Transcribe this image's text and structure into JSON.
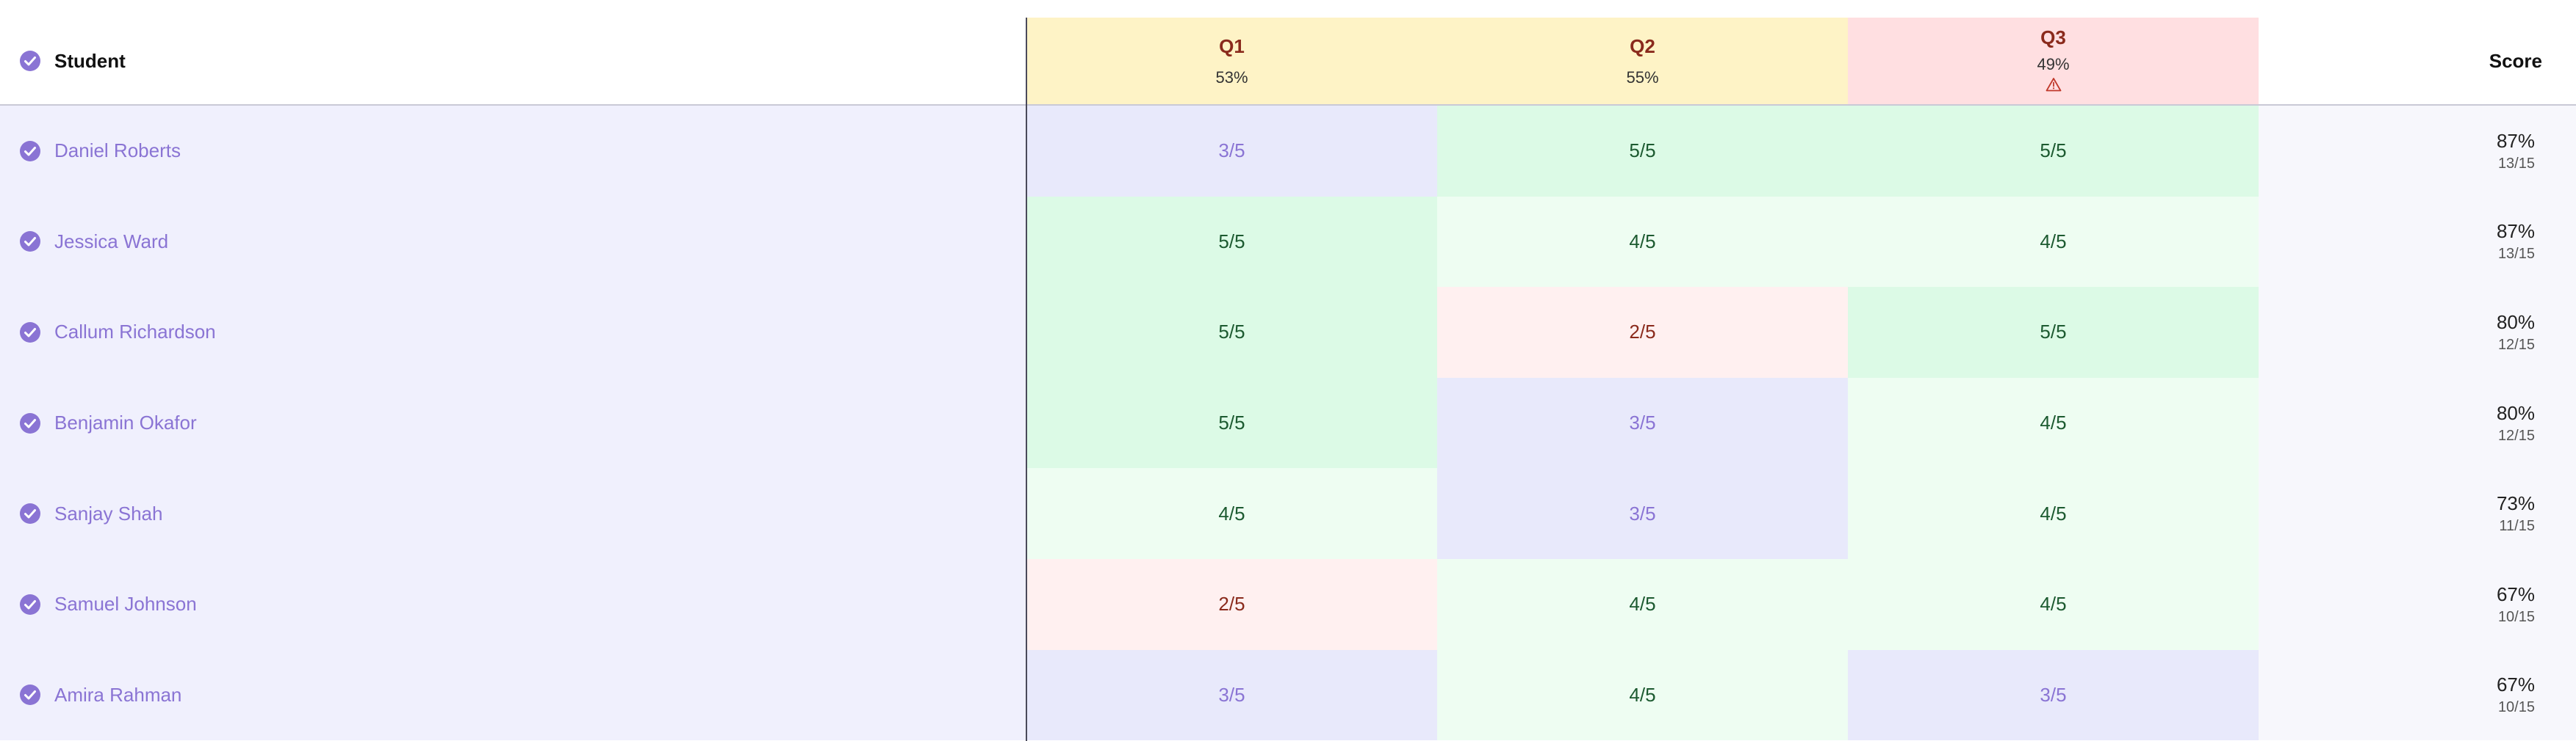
{
  "header": {
    "student_label": "Student",
    "score_label": "Score",
    "questions": [
      {
        "name": "Q1",
        "percent": "53%",
        "warning": false,
        "tone": "yellow"
      },
      {
        "name": "Q2",
        "percent": "55%",
        "warning": false,
        "tone": "yellow"
      },
      {
        "name": "Q3",
        "percent": "49%",
        "warning": true,
        "tone": "red"
      }
    ]
  },
  "icons": {
    "check": "check-circle-icon",
    "warning": "warning-triangle-icon"
  },
  "colors": {
    "accent": "#8a74d4",
    "score_full": "#dcfae6",
    "score_high": "#eefdf2",
    "score_mid": "#e8e9fb",
    "score_low": "#fff0f0",
    "header_yellow": "#fef3c6",
    "header_red": "#ffdfe1"
  },
  "students": [
    {
      "name": "Daniel Roberts",
      "scores": [
        "3/5",
        "5/5",
        "5/5"
      ],
      "total_percent": "87%",
      "total_fraction": "13/15"
    },
    {
      "name": "Jessica Ward",
      "scores": [
        "5/5",
        "4/5",
        "4/5"
      ],
      "total_percent": "87%",
      "total_fraction": "13/15"
    },
    {
      "name": "Callum Richardson",
      "scores": [
        "5/5",
        "2/5",
        "5/5"
      ],
      "total_percent": "80%",
      "total_fraction": "12/15"
    },
    {
      "name": "Benjamin Okafor",
      "scores": [
        "5/5",
        "3/5",
        "4/5"
      ],
      "total_percent": "80%",
      "total_fraction": "12/15"
    },
    {
      "name": "Sanjay Shah",
      "scores": [
        "4/5",
        "3/5",
        "4/5"
      ],
      "total_percent": "73%",
      "total_fraction": "11/15"
    },
    {
      "name": "Samuel Johnson",
      "scores": [
        "2/5",
        "4/5",
        "4/5"
      ],
      "total_percent": "67%",
      "total_fraction": "10/15"
    },
    {
      "name": "Amira Rahman",
      "scores": [
        "3/5",
        "4/5",
        "3/5"
      ],
      "total_percent": "67%",
      "total_fraction": "10/15"
    }
  ]
}
